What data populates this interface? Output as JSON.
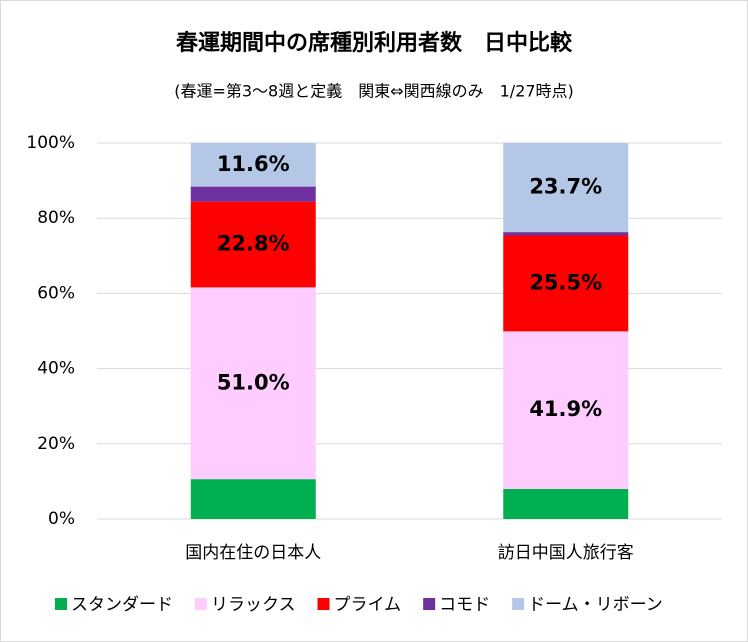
{
  "chart_data": {
    "type": "stacked-bar",
    "title": "春運期間中の席種別利用者数　日中比較",
    "subtitle": "(春運=第3～8週と定義　関東⇔関西線のみ　1/27時点)",
    "categories": [
      "国内在住の日本人",
      "訪日中国人旅行客"
    ],
    "series": [
      {
        "name": "スタンダード",
        "color": "#00b050",
        "values": [
          10.6,
          8.0
        ],
        "value_labels": [
          null,
          null
        ]
      },
      {
        "name": "リラックス",
        "color": "#ffccff",
        "values": [
          51.0,
          41.9
        ],
        "value_labels": [
          "51.0%",
          "41.9%"
        ]
      },
      {
        "name": "プライム",
        "color": "#ff0000",
        "values": [
          22.8,
          25.5
        ],
        "value_labels": [
          "22.8%",
          "25.5%"
        ]
      },
      {
        "name": "コモド",
        "color": "#7030a0",
        "values": [
          4.0,
          0.9
        ],
        "value_labels": [
          null,
          null
        ]
      },
      {
        "name": "ドーム・リボーン",
        "color": "#b4c7e7",
        "values": [
          11.6,
          23.7
        ],
        "value_labels": [
          "11.6%",
          "23.7%"
        ]
      }
    ],
    "ylim": [
      0,
      100
    ],
    "yticks": [
      {
        "value": 0,
        "label": "0%"
      },
      {
        "value": 20,
        "label": "20%"
      },
      {
        "value": 40,
        "label": "40%"
      },
      {
        "value": 60,
        "label": "60%"
      },
      {
        "value": 80,
        "label": "80%"
      },
      {
        "value": 100,
        "label": "100%"
      }
    ],
    "grid": true,
    "legend": "bottom"
  }
}
